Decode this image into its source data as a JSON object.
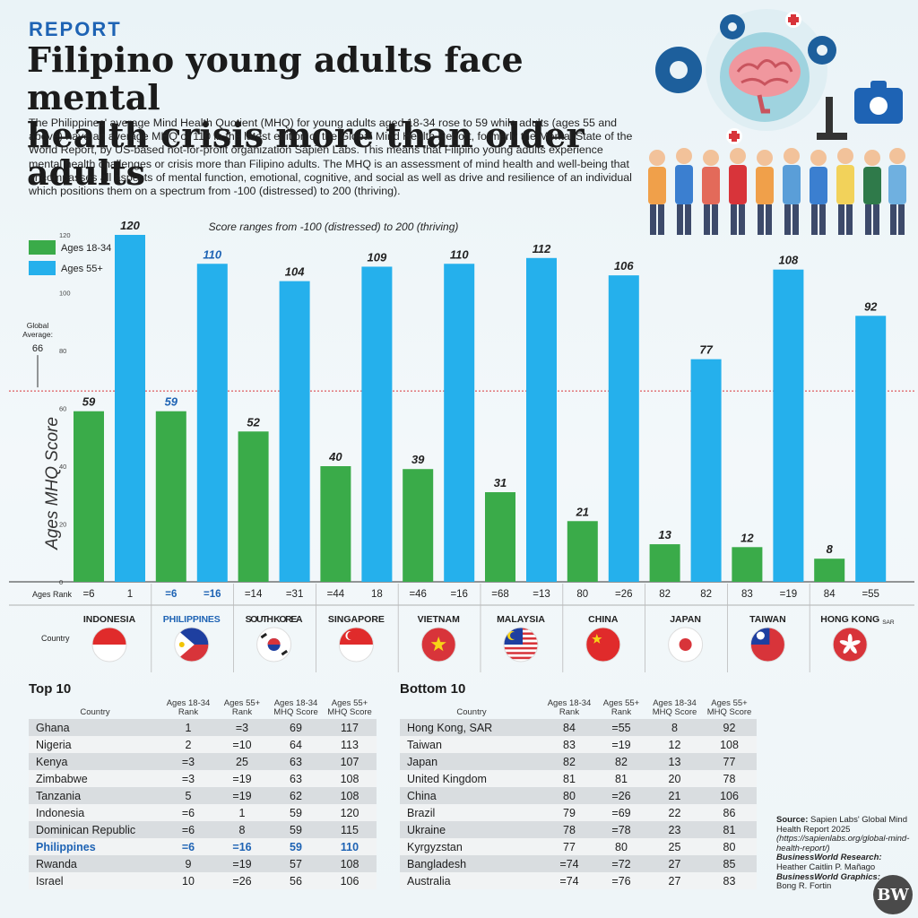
{
  "header": {
    "tag": "REPORT",
    "title_line1": "Filipino young adults face mental",
    "title_line2": "health crisis more than older adults",
    "intro": "The Philippines' average Mind Health Quotient (MHQ) for young adults aged 18-34 rose to 59 while adults (ages 55 and above) have an average MHQ of 110 in the latest edition of the Global Mind Health Report, formerly the Mental State of the World Report, by US-based not-for-profit organization Sapien Labs. This means that Filipino young adults experience mental health challenges or crisis more than Filipino adults. The MHQ is an assessment of mind health and well-being that encompasses all aspects of mental function, emotional, cognitive, and social as well as drive and resilience of an individual which positions them on a spectrum from -100 (distressed) to 200 (thriving)."
  },
  "colors": {
    "young": "#3aab49",
    "old": "#25b0ec",
    "highlight": "#1e63b4",
    "global_line": "#d8343a"
  },
  "chart_data": {
    "type": "bar",
    "subtitle": "Score ranges from -100 (distressed) to 200 (thriving)",
    "ylabel": "Ages MHQ Score",
    "ylim": [
      0,
      120
    ],
    "yticks": [
      0,
      20,
      40,
      60,
      80,
      100,
      120
    ],
    "global_average_label": "Global Average:",
    "global_average": 66,
    "rank_row_label": "Ages Rank",
    "country_row_label": "Country",
    "categories": [
      "INDONESIA",
      "PHILIPPINES",
      "SOUTH KOREA",
      "SINGAPORE",
      "VIETNAM",
      "MALAYSIA",
      "CHINA",
      "JAPAN",
      "TAIWAN",
      "HONG KONG"
    ],
    "category_suffix": {
      "HONG KONG": "SAR"
    },
    "highlight_category": "PHILIPPINES",
    "series": [
      {
        "name": "Ages 18-34",
        "values": [
          59,
          59,
          52,
          40,
          39,
          31,
          21,
          13,
          12,
          8
        ],
        "ranks": [
          "=6",
          "=6",
          "=14",
          "=44",
          "=46",
          "=68",
          "80",
          "82",
          "83",
          "84"
        ]
      },
      {
        "name": "Ages 55+",
        "values": [
          120,
          110,
          104,
          109,
          110,
          112,
          106,
          77,
          108,
          92
        ],
        "ranks": [
          "1",
          "=16",
          "=31",
          "18",
          "=16",
          "=13",
          "=26",
          "82",
          "=19",
          "=55"
        ]
      }
    ],
    "flags": [
      "indonesia-flag-icon",
      "philippines-flag-icon",
      "south-korea-flag-icon",
      "singapore-flag-icon",
      "vietnam-flag-icon",
      "malaysia-flag-icon",
      "china-flag-icon",
      "japan-flag-icon",
      "taiwan-flag-icon",
      "hong-kong-flag-icon"
    ]
  },
  "top10": {
    "title": "Top 10",
    "columns": [
      "Country",
      "Ages 18-34 Rank",
      "Ages 55+ Rank",
      "Ages 18-34 MHQ Score",
      "Ages 55+ MHQ Score"
    ],
    "rows": [
      [
        "Ghana",
        "1",
        "=3",
        "69",
        "117"
      ],
      [
        "Nigeria",
        "2",
        "=10",
        "64",
        "113"
      ],
      [
        "Kenya",
        "=3",
        "25",
        "63",
        "107"
      ],
      [
        "Zimbabwe",
        "=3",
        "=19",
        "63",
        "108"
      ],
      [
        "Tanzania",
        "5",
        "=19",
        "62",
        "108"
      ],
      [
        "Indonesia",
        "=6",
        "1",
        "59",
        "120"
      ],
      [
        "Dominican Republic",
        "=6",
        "8",
        "59",
        "115"
      ],
      [
        "Philippines",
        "=6",
        "=16",
        "59",
        "110"
      ],
      [
        "Rwanda",
        "9",
        "=19",
        "57",
        "108"
      ],
      [
        "Israel",
        "10",
        "=26",
        "56",
        "106"
      ]
    ],
    "highlight_row": 7
  },
  "bottom10": {
    "title": "Bottom 10",
    "columns": [
      "Country",
      "Ages 18-34 Rank",
      "Ages 55+ Rank",
      "Ages 18-34 MHQ Score",
      "Ages 55+ MHQ Score"
    ],
    "rows": [
      [
        "Hong Kong, SAR",
        "84",
        "=55",
        "8",
        "92"
      ],
      [
        "Taiwan",
        "83",
        "=19",
        "12",
        "108"
      ],
      [
        "Japan",
        "82",
        "82",
        "13",
        "77"
      ],
      [
        "United Kingdom",
        "81",
        "81",
        "20",
        "78"
      ],
      [
        "China",
        "80",
        "=26",
        "21",
        "106"
      ],
      [
        "Brazil",
        "79",
        "=69",
        "22",
        "86"
      ],
      [
        "Ukraine",
        "78",
        "=78",
        "23",
        "81"
      ],
      [
        "Kyrgyzstan",
        "77",
        "80",
        "25",
        "80"
      ],
      [
        "Bangladesh",
        "=74",
        "=72",
        "27",
        "85"
      ],
      [
        "Australia",
        "=74",
        "=76",
        "27",
        "83"
      ]
    ]
  },
  "source": {
    "source_label": "Source:",
    "source_text": "Sapien Labs' Global Mind Health Report 2025",
    "source_url": "(https://sapienlabs.org/global-mind-health-report/)",
    "research_label": "BusinessWorld Research:",
    "research_name": "Heather Caitlin P. Mañago",
    "graphics_label": "BusinessWorld Graphics:",
    "graphics_name": "Bong R. Fortin",
    "logo": "BW"
  }
}
